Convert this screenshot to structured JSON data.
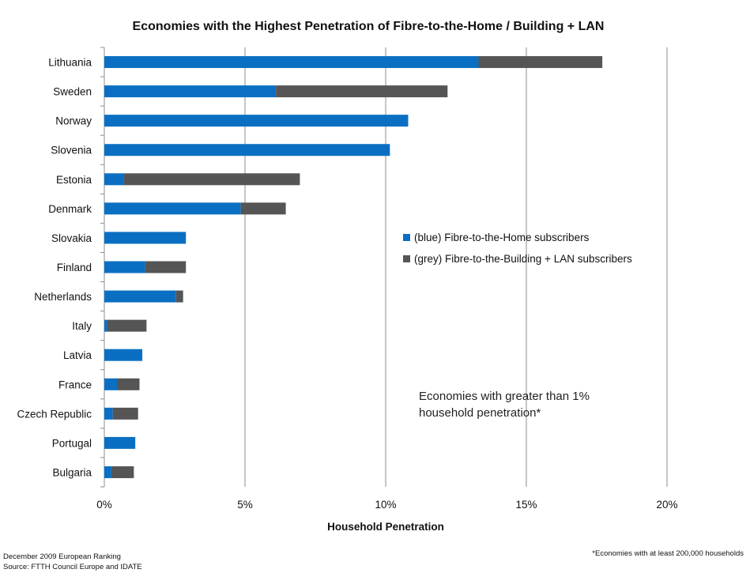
{
  "chart_data": {
    "type": "bar",
    "orientation": "horizontal",
    "stacked": true,
    "title": "Economies with the Highest Penetration of Fibre-to-the-Home / Building + LAN",
    "xlabel": "Household Penetration",
    "ylabel": "",
    "xlim": [
      0,
      20
    ],
    "x_ticks": [
      0,
      5,
      10,
      15,
      20
    ],
    "x_tick_labels": [
      "0%",
      "5%",
      "10%",
      "15%",
      "20%"
    ],
    "x_unit": "%",
    "grid": "vertical",
    "legend_placement": "right-middle",
    "categories": [
      "Lithuania",
      "Sweden",
      "Norway",
      "Slovenia",
      "Estonia",
      "Denmark",
      "Slovakia",
      "Finland",
      "Netherlands",
      "Italy",
      "Latvia",
      "France",
      "Czech Republic",
      "Portugal",
      "Bulgaria"
    ],
    "series": [
      {
        "name": "(blue) Fibre-to-the-Home subscribers",
        "color": "#0a6fc2",
        "values": [
          13.3,
          6.1,
          10.8,
          10.15,
          0.7,
          4.85,
          2.9,
          1.45,
          2.55,
          0.1,
          1.35,
          0.45,
          0.3,
          1.1,
          0.25
        ]
      },
      {
        "name": "(grey) Fibre-to-the-Building + LAN subscribers",
        "color": "#555555",
        "values": [
          4.4,
          6.1,
          0,
          0,
          6.25,
          1.6,
          0,
          1.45,
          0.25,
          1.4,
          0,
          0.8,
          0.9,
          0,
          0.8
        ]
      }
    ],
    "annotations": [
      "Economies with greater than 1%",
      "household penetration*"
    ]
  },
  "footer": {
    "ranking": "December 2009 European Ranking",
    "source": "Source: FTTH Council Europe and IDATE",
    "footnote": "*Economies with at least 200,000 households"
  }
}
